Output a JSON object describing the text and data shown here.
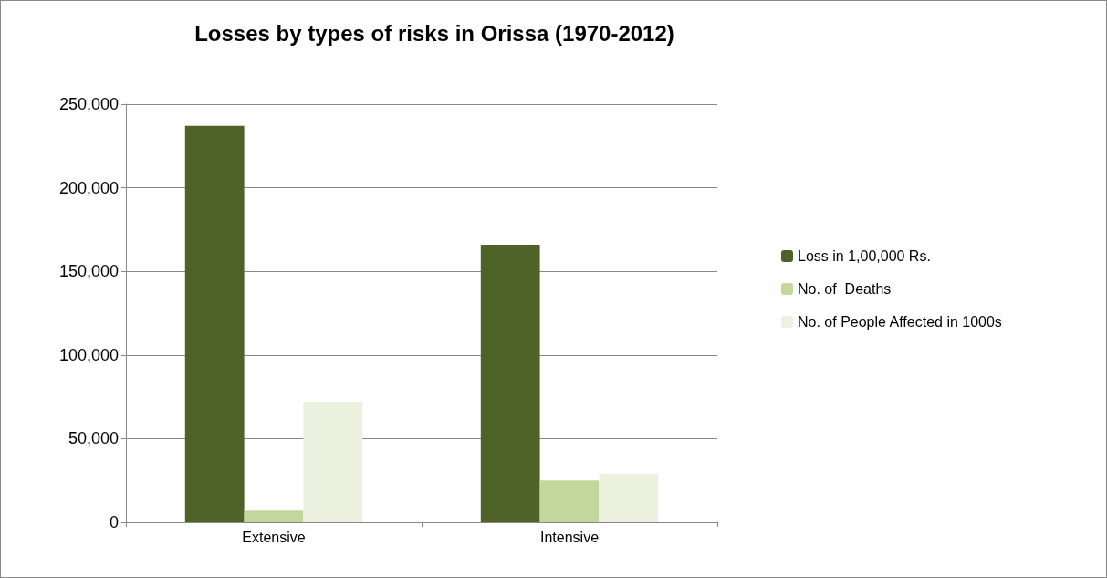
{
  "chart_data": {
    "type": "bar",
    "title": "Losses by types of risks in Orissa (1970-2012)",
    "categories": [
      "Extensive",
      "Intensive"
    ],
    "series": [
      {
        "name": "Loss in 1,00,000 Rs.",
        "color": "#4f6228",
        "values": [
          237000,
          166000
        ]
      },
      {
        "name": "No. of  Deaths",
        "color": "#c3d69b",
        "values": [
          7000,
          25000
        ]
      },
      {
        "name": "No. of People Affected in 1000s",
        "color": "#ebf1de",
        "values": [
          72000,
          29000
        ]
      }
    ],
    "ylim": [
      0,
      250000
    ],
    "yticks": [
      0,
      {
        "value": 50000,
        "label": "50,000"
      },
      {
        "value": 100000,
        "label": "100,000"
      },
      {
        "value": 150000,
        "label": "150,000"
      },
      {
        "value": 200000,
        "label": "200,000"
      },
      {
        "value": 250000,
        "label": "250,000"
      }
    ],
    "grid": "y",
    "legend": "right"
  }
}
